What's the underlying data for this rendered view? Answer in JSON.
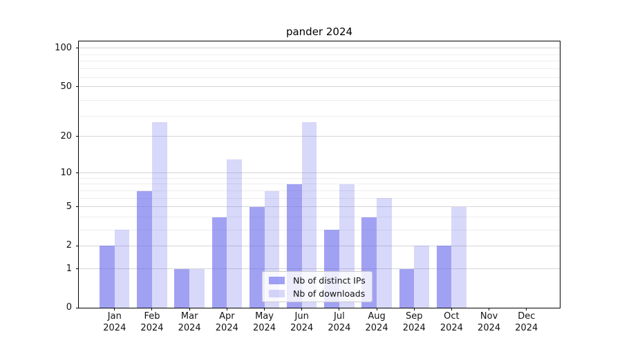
{
  "title": "pander 2024",
  "chart_data": {
    "type": "bar",
    "title": "pander 2024",
    "categories": [
      "Jan 2024",
      "Feb 2024",
      "Mar 2024",
      "Apr 2024",
      "May 2024",
      "Jun 2024",
      "Jul 2024",
      "Aug 2024",
      "Sep 2024",
      "Oct 2024",
      "Nov 2024",
      "Dec 2024"
    ],
    "series": [
      {
        "name": "Nb of distinct IPs",
        "values": [
          2,
          7,
          1,
          4,
          5,
          8,
          3,
          4,
          1,
          2,
          0,
          0
        ],
        "color": "rgba(99,99,237,0.60)"
      },
      {
        "name": "Nb of downloads",
        "values": [
          3,
          26,
          1,
          13,
          7,
          26,
          8,
          6,
          2,
          5,
          0,
          0
        ],
        "color": "rgba(99,99,237,0.25)"
      }
    ],
    "yscale": "log1p",
    "y_ticks": [
      0,
      1,
      2,
      5,
      10,
      20,
      50,
      100
    ],
    "y_minor_gridlines": [
      3,
      4,
      6,
      7,
      8,
      9,
      29,
      39,
      59,
      69,
      79,
      89
    ],
    "ylim": [
      0,
      113
    ],
    "xlabel": "",
    "ylabel": "",
    "grid": true,
    "legend_position": "lower center"
  },
  "colors": {
    "major_grid": "#d6d6d6",
    "minor_grid": "#ededed",
    "spine": "#000000",
    "text": "#111111",
    "legend_bg": "rgba(255,255,255,0.8)",
    "legend_border": "#cccccc"
  }
}
